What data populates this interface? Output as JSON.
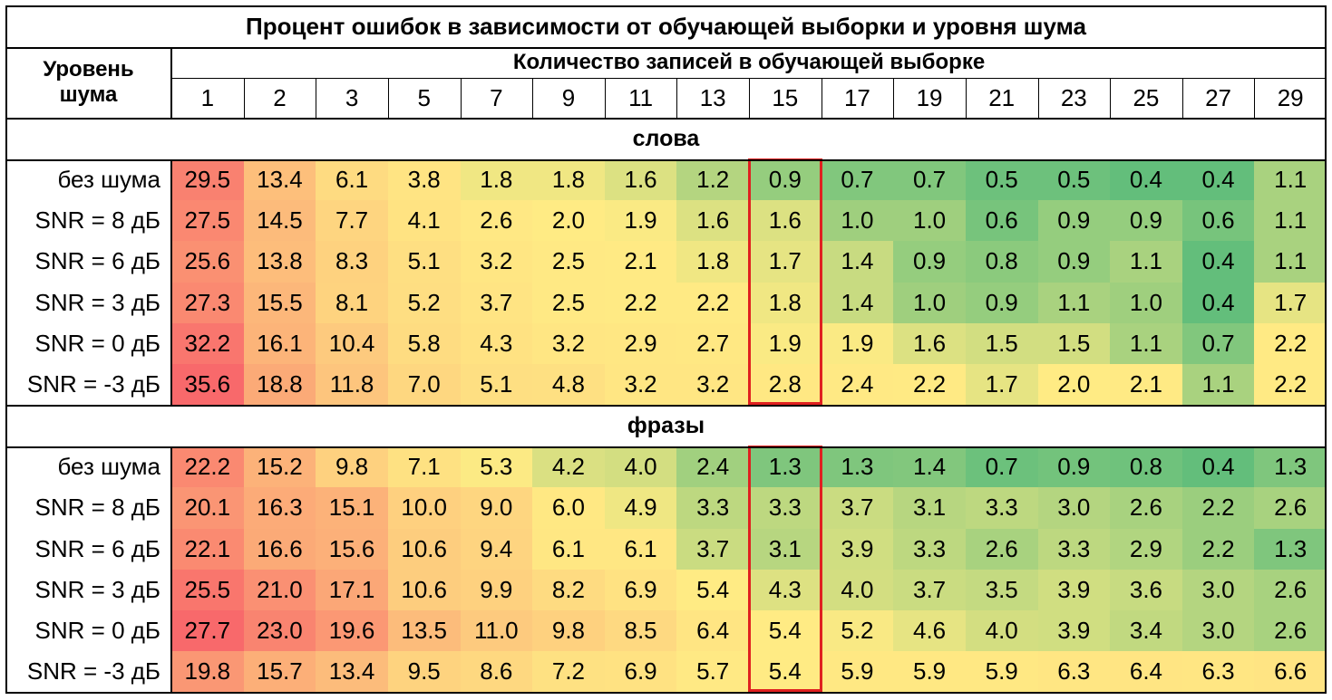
{
  "title": "Процент ошибок в зависимости от обучающей выборки и уровня шума",
  "row_header_line1": "Уровень",
  "row_header_line2": "шума",
  "col_header_title": "Количество записей в обучающей выборке",
  "columns": [
    "1",
    "2",
    "3",
    "5",
    "7",
    "9",
    "11",
    "13",
    "15",
    "17",
    "19",
    "21",
    "23",
    "25",
    "27",
    "29"
  ],
  "highlight_column": "15",
  "color_scale": {
    "low": "#63be7b",
    "mid": "#ffeb84",
    "high": "#f8696b"
  },
  "chart_data": {
    "type": "heatmap",
    "title": "Процент ошибок в зависимости от обучающей выборки и уровня шума",
    "xlabel": "Количество записей в обучающей выборке",
    "ylabel": "Уровень шума",
    "x": [
      "1",
      "2",
      "3",
      "5",
      "7",
      "9",
      "11",
      "13",
      "15",
      "17",
      "19",
      "21",
      "23",
      "25",
      "27",
      "29"
    ],
    "sections": [
      {
        "name": "слова",
        "rows": [
          {
            "label": "без шума",
            "values": [
              "29.5",
              "13.4",
              "6.1",
              "3.8",
              "1.8",
              "1.8",
              "1.6",
              "1.2",
              "0.9",
              "0.7",
              "0.7",
              "0.5",
              "0.5",
              "0.4",
              "0.4",
              "1.1"
            ]
          },
          {
            "label": "SNR = 8 дБ",
            "values": [
              "27.5",
              "14.5",
              "7.7",
              "4.1",
              "2.6",
              "2.0",
              "1.9",
              "1.6",
              "1.6",
              "1.0",
              "1.0",
              "0.6",
              "0.9",
              "0.9",
              "0.6",
              "1.1"
            ]
          },
          {
            "label": "SNR = 6 дБ",
            "values": [
              "25.6",
              "13.8",
              "8.3",
              "5.1",
              "3.2",
              "2.5",
              "2.1",
              "1.8",
              "1.7",
              "1.4",
              "0.9",
              "0.8",
              "0.9",
              "1.1",
              "0.4",
              "1.1"
            ]
          },
          {
            "label": "SNR = 3 дБ",
            "values": [
              "27.3",
              "15.5",
              "8.1",
              "5.2",
              "3.7",
              "2.5",
              "2.2",
              "2.2",
              "1.8",
              "1.4",
              "1.0",
              "0.9",
              "1.1",
              "1.0",
              "0.4",
              "1.7"
            ]
          },
          {
            "label": "SNR = 0 дБ",
            "values": [
              "32.2",
              "16.1",
              "10.4",
              "5.8",
              "4.3",
              "3.2",
              "2.9",
              "2.7",
              "1.9",
              "1.9",
              "1.6",
              "1.5",
              "1.5",
              "1.1",
              "0.7",
              "2.2"
            ]
          },
          {
            "label": "SNR = -3 дБ",
            "values": [
              "35.6",
              "18.8",
              "11.8",
              "7.0",
              "5.1",
              "4.8",
              "3.2",
              "3.2",
              "2.8",
              "2.4",
              "2.2",
              "1.7",
              "2.0",
              "2.1",
              "1.1",
              "2.2"
            ]
          }
        ]
      },
      {
        "name": "фразы",
        "rows": [
          {
            "label": "без шума",
            "values": [
              "22.2",
              "15.2",
              "9.8",
              "7.1",
              "5.3",
              "4.2",
              "4.0",
              "2.4",
              "1.3",
              "1.3",
              "1.4",
              "0.7",
              "0.9",
              "0.8",
              "0.4",
              "1.3"
            ]
          },
          {
            "label": "SNR = 8 дБ",
            "values": [
              "20.1",
              "16.3",
              "15.1",
              "10.0",
              "9.0",
              "6.0",
              "4.9",
              "3.3",
              "3.3",
              "3.7",
              "3.1",
              "3.3",
              "3.0",
              "2.6",
              "2.2",
              "2.6"
            ]
          },
          {
            "label": "SNR = 6 дБ",
            "values": [
              "22.1",
              "16.6",
              "15.6",
              "10.6",
              "9.4",
              "6.1",
              "6.1",
              "3.7",
              "3.1",
              "3.9",
              "3.3",
              "2.6",
              "3.3",
              "2.9",
              "2.2",
              "1.3"
            ]
          },
          {
            "label": "SNR = 3 дБ",
            "values": [
              "25.5",
              "21.0",
              "17.1",
              "10.6",
              "9.9",
              "8.2",
              "6.9",
              "5.4",
              "4.3",
              "4.0",
              "3.7",
              "3.5",
              "3.9",
              "3.6",
              "3.0",
              "2.6"
            ]
          },
          {
            "label": "SNR = 0 дБ",
            "values": [
              "27.7",
              "23.0",
              "19.6",
              "13.5",
              "11.0",
              "9.8",
              "8.5",
              "6.4",
              "5.4",
              "5.2",
              "4.6",
              "4.0",
              "3.9",
              "3.4",
              "3.0",
              "2.6"
            ]
          },
          {
            "label": "SNR = -3 дБ",
            "values": [
              "19.8",
              "15.7",
              "13.4",
              "9.5",
              "8.6",
              "7.2",
              "6.9",
              "5.7",
              "5.4",
              "5.9",
              "5.9",
              "5.9",
              "6.3",
              "6.4",
              "6.3",
              "6.6"
            ]
          }
        ]
      }
    ]
  }
}
